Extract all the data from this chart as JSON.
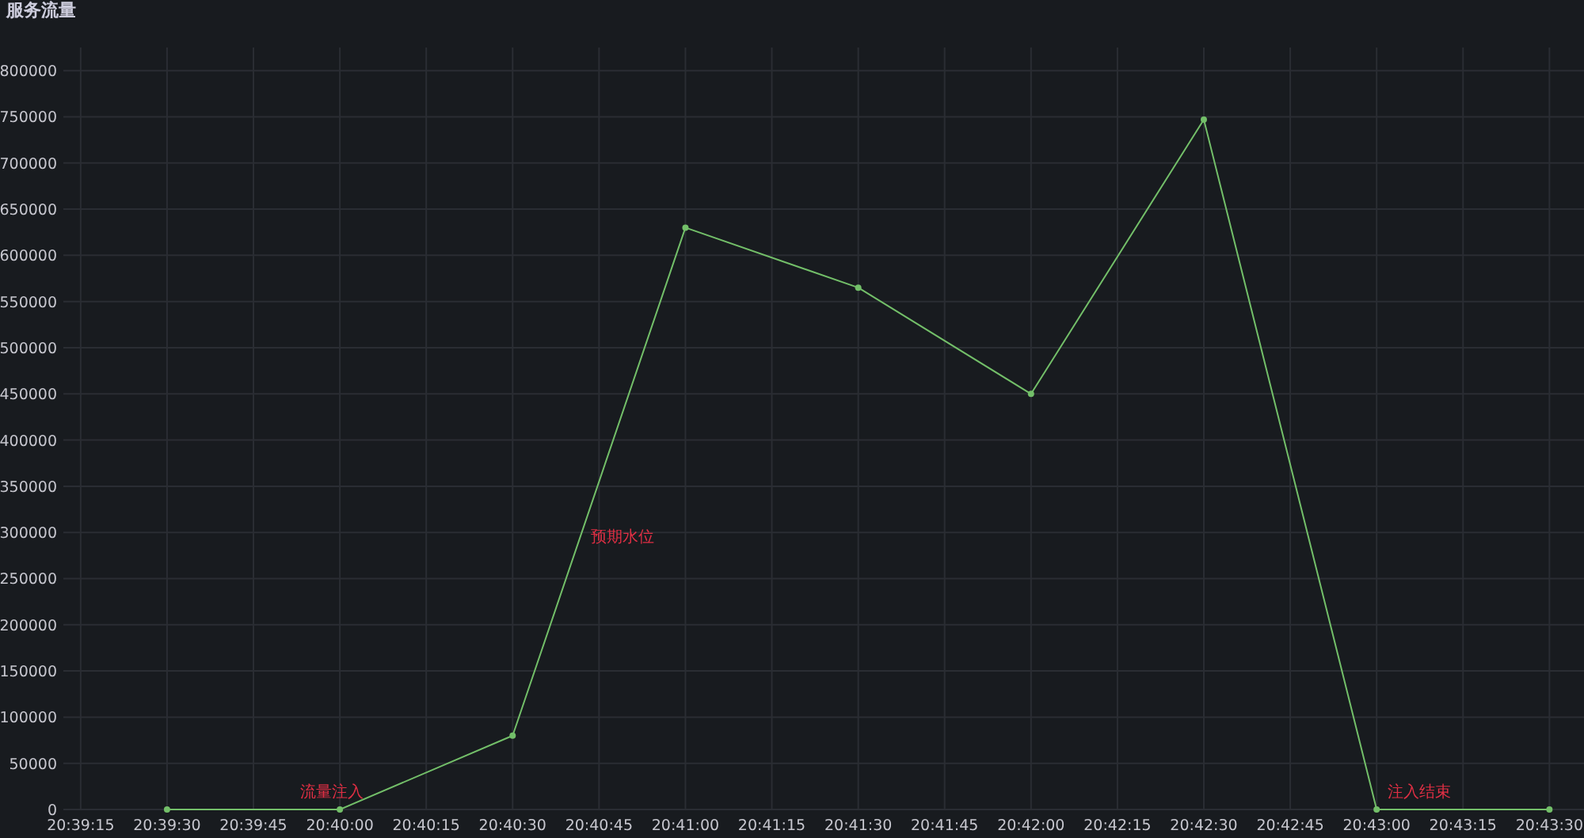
{
  "chart_data": {
    "type": "line",
    "title": "服务流量",
    "x": [
      20.658333,
      20.666667,
      20.675,
      20.683333,
      20.691667,
      20.7,
      20.708333,
      20.716667,
      20.725
    ],
    "series": [
      {
        "color": "#73bf69",
        "values": [
          0,
          0,
          80000,
          630000,
          565000,
          450000,
          747000,
          0,
          0
        ]
      }
    ],
    "xlim": [
      20.653333,
      20.726667
    ],
    "ylim": [
      0,
      825000
    ],
    "xticks": [
      {
        "value": 20.654167,
        "label": "20:39:15"
      },
      {
        "value": 20.658333,
        "label": "20:39:30"
      },
      {
        "value": 20.6625,
        "label": "20:39:45"
      },
      {
        "value": 20.666667,
        "label": "20:40:00"
      },
      {
        "value": 20.670833,
        "label": "20:40:15"
      },
      {
        "value": 20.675,
        "label": "20:40:30"
      },
      {
        "value": 20.679167,
        "label": "20:40:45"
      },
      {
        "value": 20.683333,
        "label": "20:41:00"
      },
      {
        "value": 20.6875,
        "label": "20:41:15"
      },
      {
        "value": 20.691667,
        "label": "20:41:30"
      },
      {
        "value": 20.695833,
        "label": "20:41:45"
      },
      {
        "value": 20.7,
        "label": "20:42:00"
      },
      {
        "value": 20.704167,
        "label": "20:42:15"
      },
      {
        "value": 20.708333,
        "label": "20:42:30"
      },
      {
        "value": 20.7125,
        "label": "20:42:45"
      },
      {
        "value": 20.716667,
        "label": "20:43:00"
      },
      {
        "value": 20.720833,
        "label": "20:43:15"
      },
      {
        "value": 20.725,
        "label": "20:43:30"
      }
    ],
    "yticks": [
      0,
      50000,
      100000,
      150000,
      200000,
      250000,
      300000,
      350000,
      400000,
      450000,
      500000,
      550000,
      600000,
      650000,
      700000,
      750000,
      800000
    ],
    "annotations": [
      {
        "text": "流量注入",
        "x": 20.666667,
        "y": 0
      },
      "预期水位",
      {
        "text": "注入结束",
        "x": 20.716667,
        "y": 0
      }
    ],
    "grid": true,
    "marker": "circle",
    "line_style": "solid"
  }
}
